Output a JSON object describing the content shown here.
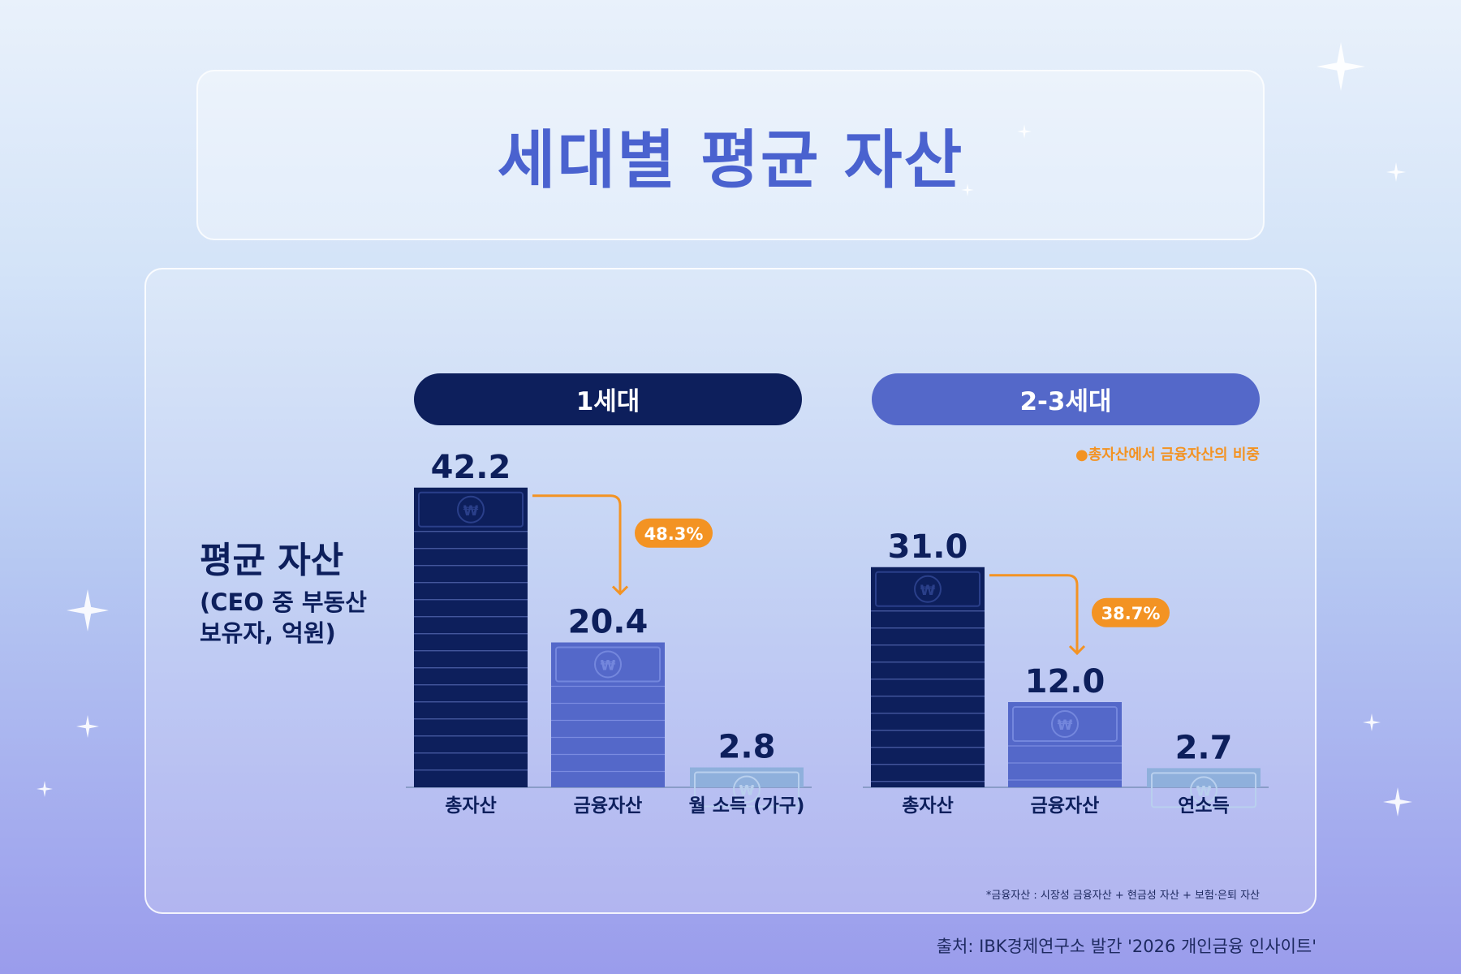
{
  "title": "세대별 평균 자산",
  "colors": {
    "dark": "#0d1f5c",
    "mid": "#5468c9",
    "light": "#8fb0dc",
    "accent": "#f39323",
    "title": "#4a62cf"
  },
  "chart_data": {
    "type": "bar",
    "title": "세대별 평균 자산",
    "ylabel_title": "평균 자산",
    "ylabel_lines": [
      "(CEO 중 부동산",
      "보유자, 억원)"
    ],
    "legend_note": "●총자산에서 금융자산의 비중",
    "groups": [
      {
        "name": "1세대",
        "categories": [
          "총자산",
          "금융자산",
          "월 소득 (가구)"
        ],
        "values": [
          42.2,
          20.4,
          2.8
        ],
        "value_labels": [
          "42.2",
          "20.4",
          "2.8"
        ],
        "ratio": "48.3%"
      },
      {
        "name": "2-3세대",
        "categories": [
          "총자산",
          "금융자산",
          "연소득"
        ],
        "values": [
          31.0,
          12.0,
          2.7
        ],
        "value_labels": [
          "31.0",
          "12.0",
          "2.7"
        ],
        "ratio": "38.7%"
      }
    ]
  },
  "footnote": "*금융자산 : 시장성 금융자산 + 현금성 자산 + 보험·은퇴 자산",
  "source": "출처: IBK경제연구소 발간 '2026 개인금융 인사이트'"
}
